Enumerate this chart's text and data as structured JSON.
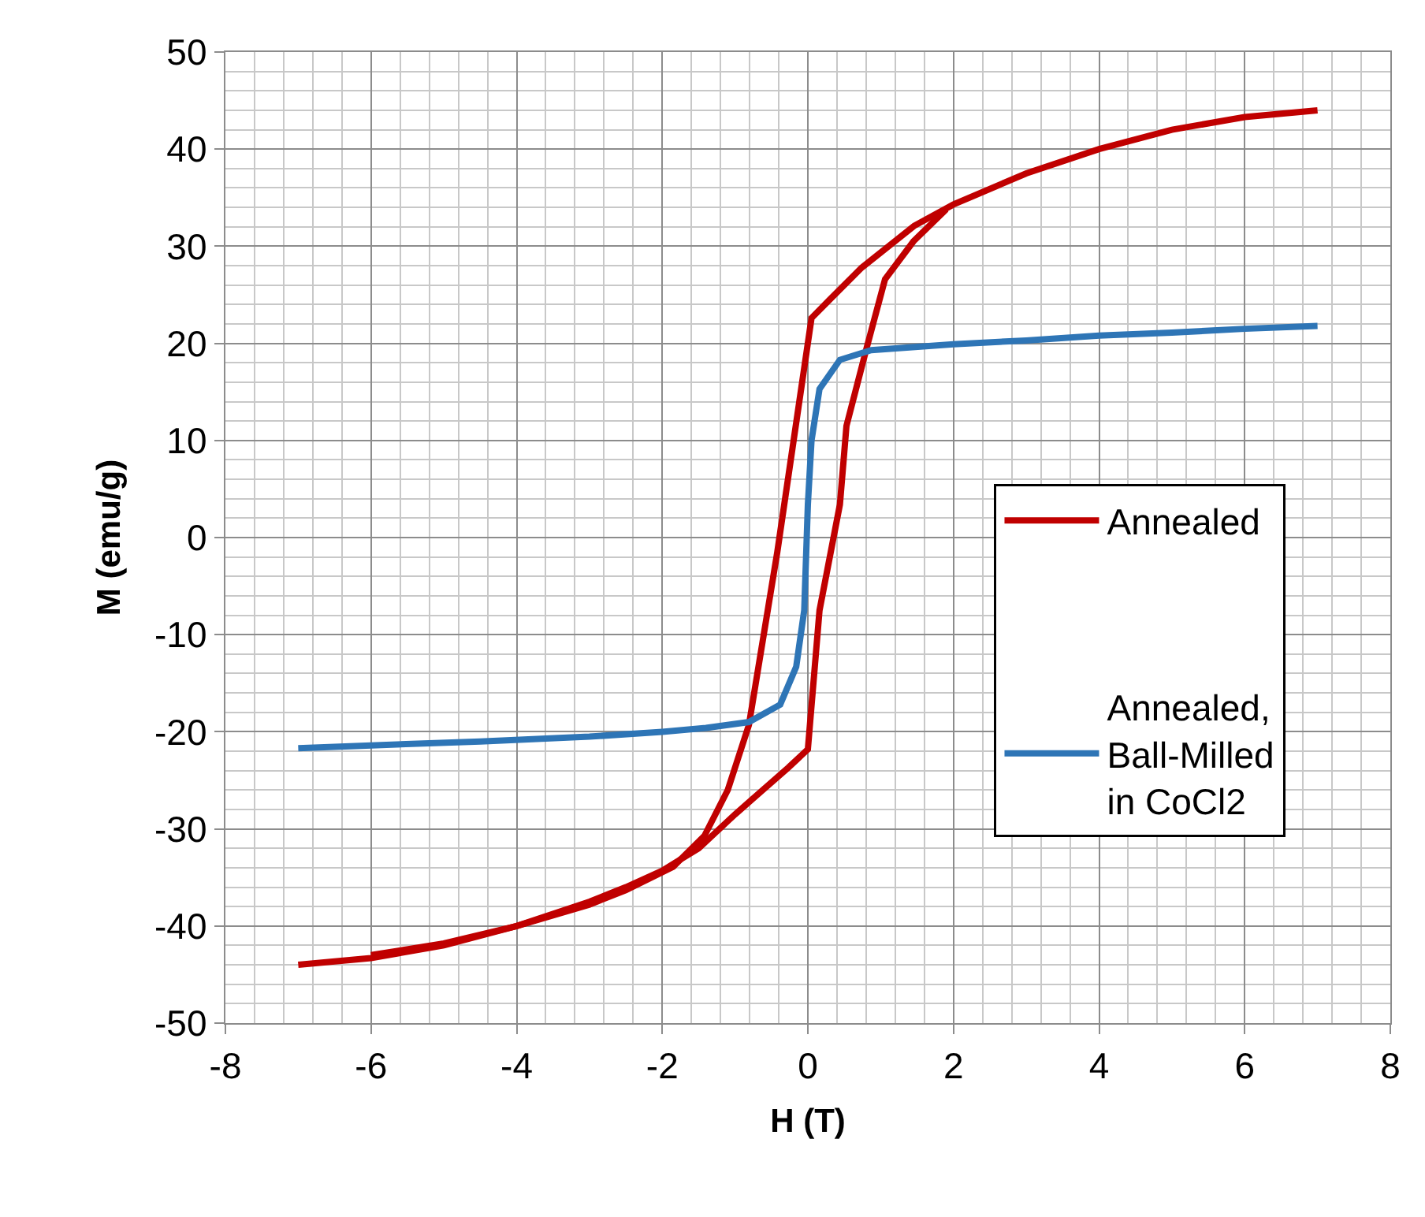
{
  "chart_data": {
    "type": "line",
    "xlabel": "H (T)",
    "ylabel": "M (emu/g)",
    "xlim": [
      -8,
      8
    ],
    "xticks": [
      -8,
      -6,
      -4,
      -2,
      0,
      2,
      4,
      6,
      8
    ],
    "ylim": [
      -50,
      50
    ],
    "yticks": [
      -50,
      -40,
      -30,
      -20,
      -10,
      0,
      10,
      20,
      30,
      40,
      50
    ],
    "grid": true,
    "legend": "right",
    "marker": "none",
    "line_style": "solid",
    "series": [
      {
        "name": "Annealed",
        "color": "#c00000",
        "x": [
          -7,
          -6,
          -5,
          -4,
          -3,
          -2.5,
          -1.85,
          -1.42,
          -1.1,
          -0.81,
          -0.42,
          0.05,
          0.3,
          0.74,
          1.46,
          2,
          3,
          4,
          5,
          6,
          7,
          null,
          -6,
          -5,
          -4,
          -3,
          -2.5,
          -2,
          -1.5,
          -1,
          -0.27,
          0,
          0.16,
          0.44,
          0.53,
          0.81,
          1.06,
          1.45,
          1.9
        ],
        "values": [
          -44,
          -43.3,
          -42,
          -40,
          -37.8,
          -36.3,
          -33.9,
          -30.7,
          -26,
          -19.3,
          -1.5,
          22.6,
          24.5,
          27.8,
          32.1,
          34.3,
          37.5,
          40,
          42,
          43.3,
          44,
          null,
          -43,
          -41.8,
          -40,
          -37.5,
          -36,
          -34.3,
          -32,
          -28.5,
          -23.7,
          -21.8,
          -7.5,
          3.4,
          11.5,
          19.6,
          26.6,
          30.5,
          33.8
        ]
      },
      {
        "name": "Annealed,\nBall-Milled\nin CoCl2",
        "color": "#2e75b6",
        "x": [
          -7,
          -6,
          -4.5,
          -3,
          -2,
          -1.4,
          -0.81,
          -0.38,
          -0.16,
          -0.05,
          0,
          0.05,
          0.16,
          0.44,
          0.87,
          2,
          3,
          4,
          5,
          6,
          7
        ],
        "values": [
          -21.7,
          -21.4,
          -21,
          -20.5,
          -20,
          -19.6,
          -19,
          -17.2,
          -13.3,
          -7.5,
          3.4,
          10,
          15.3,
          18.3,
          19.3,
          19.9,
          20.3,
          20.8,
          21.1,
          21.5,
          21.8
        ]
      }
    ]
  }
}
